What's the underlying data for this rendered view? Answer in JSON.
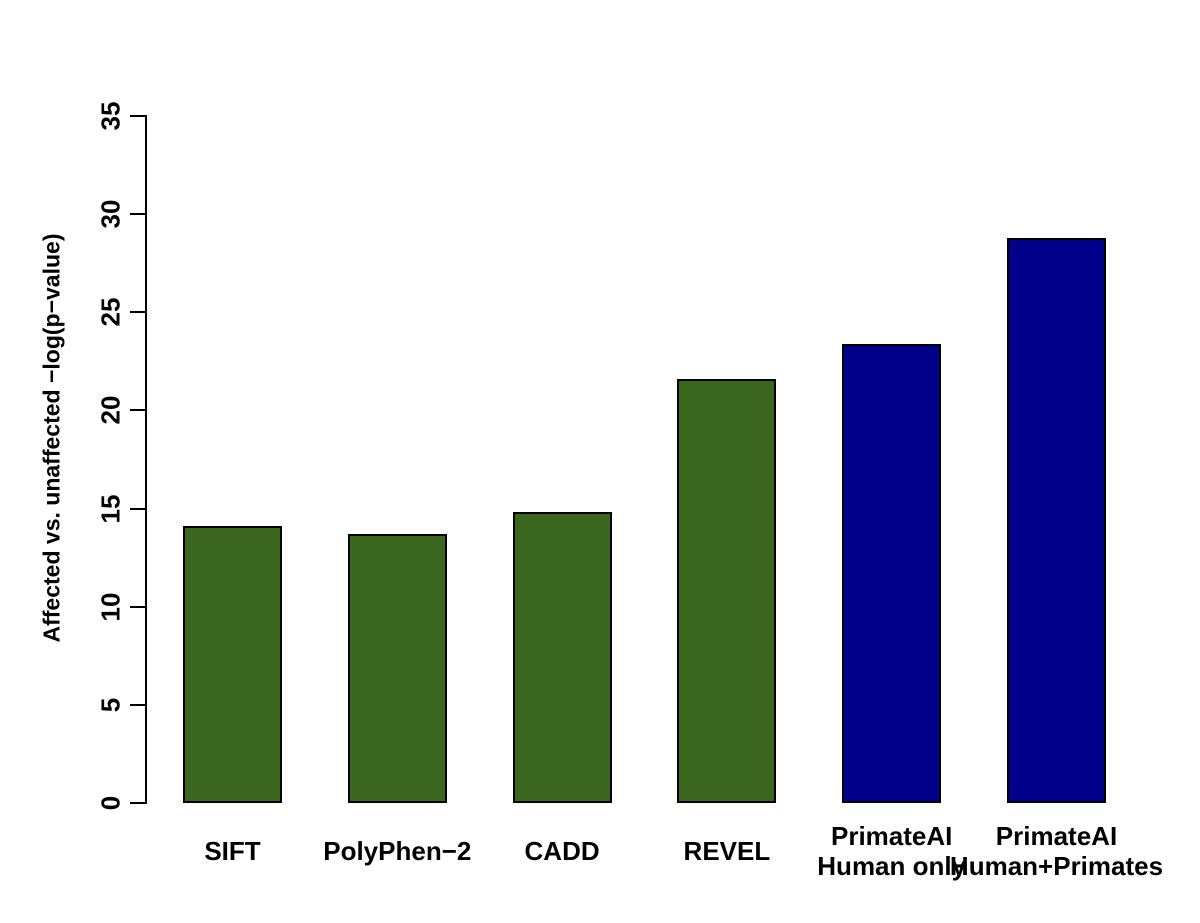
{
  "figure": {
    "background": "#ffffff"
  },
  "chart_data": {
    "type": "bar",
    "title": "",
    "xlabel": "",
    "ylabel": "Affected vs. unaffected −log(p−value)",
    "categories": [
      "SIFT",
      "PolyPhen−2",
      "CADD",
      "REVEL",
      "PrimateAI\nHuman only",
      "PrimateAI\nHuman+Primates"
    ],
    "values": [
      14.1,
      13.7,
      14.8,
      21.6,
      23.4,
      28.8
    ],
    "bar_colors": [
      "#3a671d",
      "#3a671d",
      "#3a671d",
      "#3a671d",
      "#00008b",
      "#00008b"
    ],
    "bar_border_color": "#000000",
    "axis_color": "#000000",
    "text_color": "#000000",
    "ylim": [
      0,
      35
    ],
    "yticks": [
      0,
      5,
      10,
      15,
      20,
      25,
      30,
      35
    ],
    "grid": false,
    "legend": "none"
  }
}
